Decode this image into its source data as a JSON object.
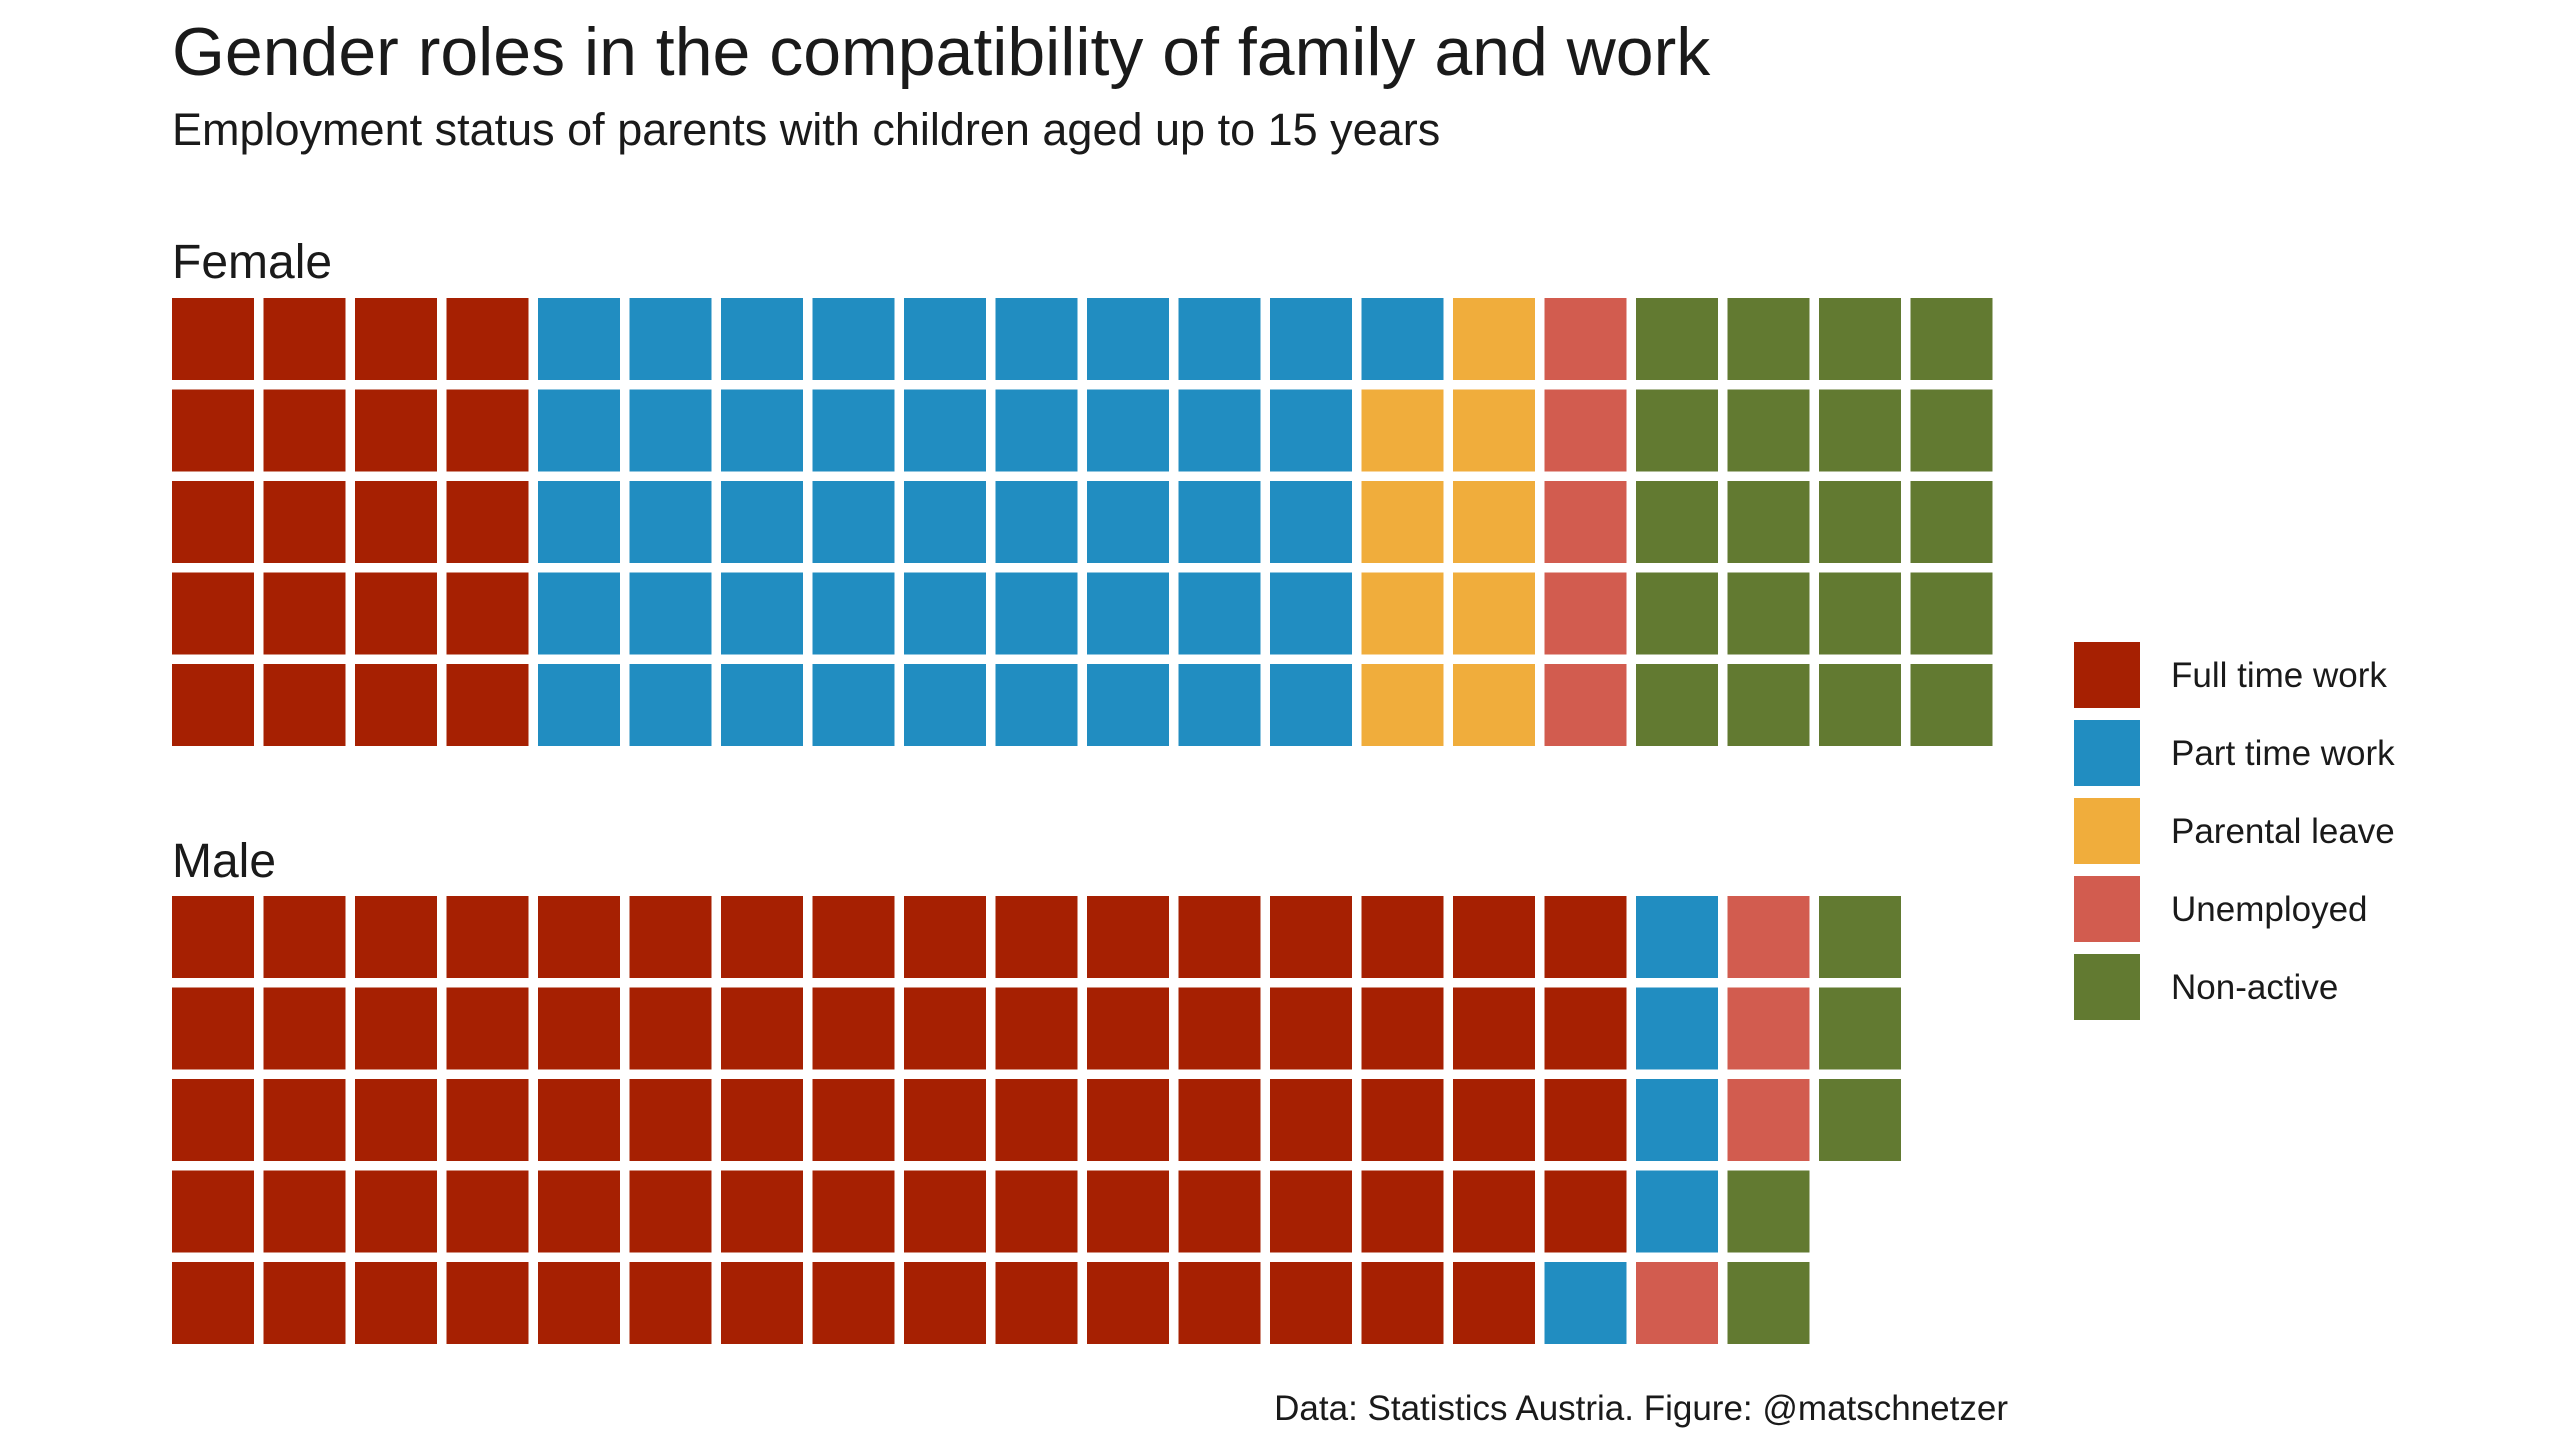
{
  "chart_data": {
    "type": "waffle",
    "title": "Gender roles in the compatibility of family and work",
    "subtitle": "Employment status of parents with children aged up to 15 years",
    "caption": "Data: Statistics Austria. Figure: @matschnetzer",
    "grid": {
      "rows": 5,
      "columns": 20
    },
    "categories": [
      {
        "name": "Full time work",
        "color": "#a62002"
      },
      {
        "name": "Part time work",
        "color": "#218dc1"
      },
      {
        "name": "Parental leave",
        "color": "#f0ad3c"
      },
      {
        "name": "Unemployed",
        "color": "#d25c4f"
      },
      {
        "name": "Non-active",
        "color": "#627a31"
      }
    ],
    "legend_position": "right",
    "panels": [
      {
        "label": "Female",
        "values": [
          20,
          46,
          9,
          5,
          20
        ]
      },
      {
        "label": "Male",
        "values": [
          79,
          5,
          0,
          4,
          5
        ]
      }
    ]
  }
}
